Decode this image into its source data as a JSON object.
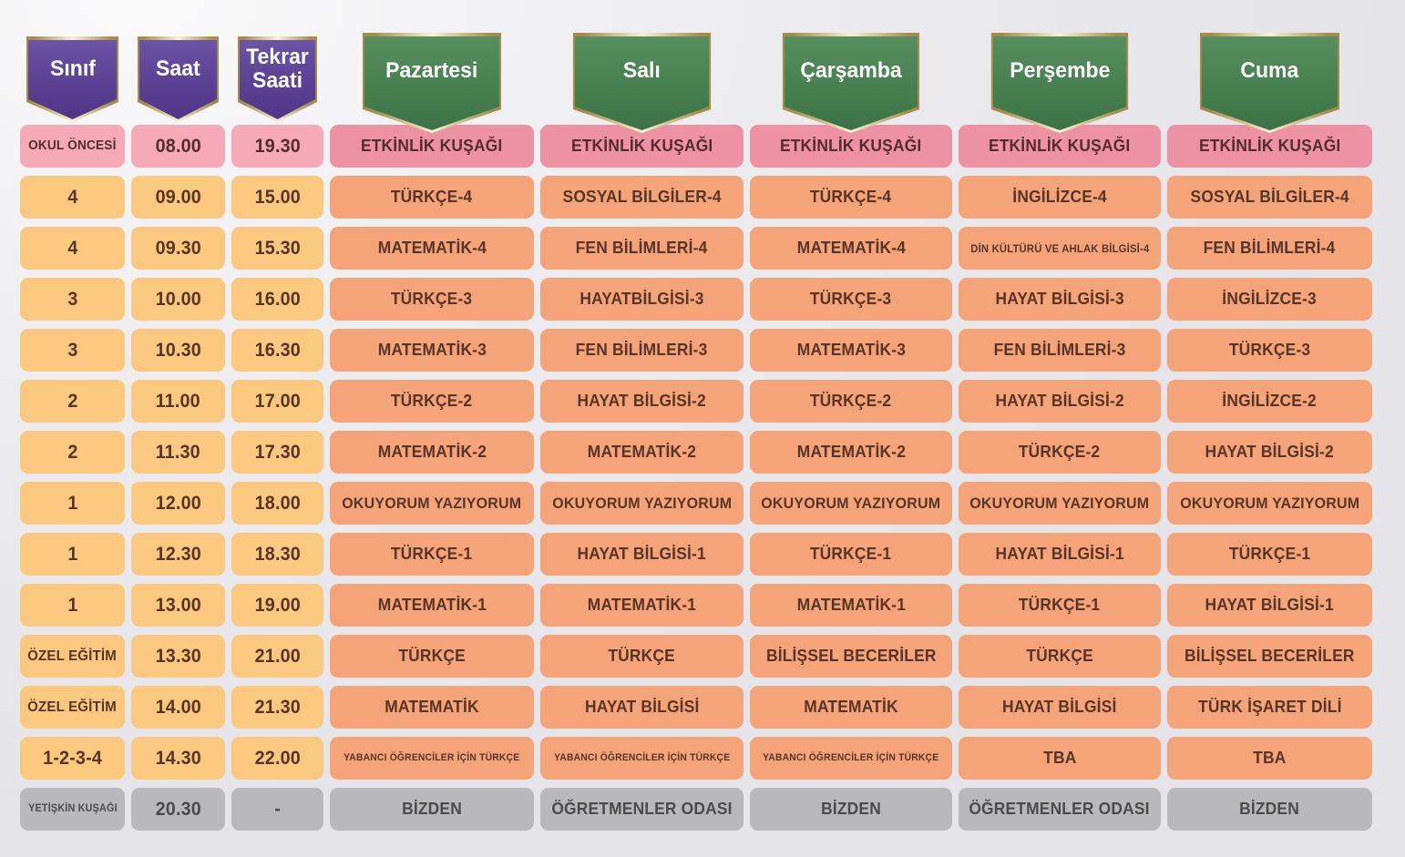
{
  "palette": {
    "background": "#ebebee",
    "ribbon_purple": "#5a4193",
    "ribbon_green": "#47804f",
    "ribbon_gold": "#a58c4b",
    "pink_info": "#f6aab7",
    "pink_day": "#ec92a2",
    "orange_info": "#fac87f",
    "orange_day": "#f4a478",
    "gray_cell": "#b9b9bb",
    "cell_text": "#583526",
    "pink_text": "#552c30",
    "gray_text": "#4b4b4b",
    "ribbon_text": "#ffffff"
  },
  "header": {
    "info_columns": [
      {
        "label": "Sınıf"
      },
      {
        "label": "Saat"
      },
      {
        "label": "Tekrar Saati"
      }
    ],
    "day_columns": [
      {
        "label": "Pazartesi"
      },
      {
        "label": "Salı"
      },
      {
        "label": "Çarşamba"
      },
      {
        "label": "Perşembe"
      },
      {
        "label": "Cuma"
      }
    ]
  },
  "rows": [
    {
      "class": "OKUL ÖNCESİ",
      "time": "08.00",
      "repeat": "19.30",
      "style": "pink",
      "days": [
        "ETKİNLİK KUŞAĞI",
        "ETKİNLİK KUŞAĞI",
        "ETKİNLİK KUŞAĞI",
        "ETKİNLİK KUŞAĞI",
        "ETKİNLİK KUŞAĞI"
      ]
    },
    {
      "class": "4",
      "time": "09.00",
      "repeat": "15.00",
      "style": "orange",
      "days": [
        "TÜRKÇE-4",
        "SOSYAL BİLGİLER-4",
        "TÜRKÇE-4",
        "İNGİLİZCE-4",
        "SOSYAL BİLGİLER-4"
      ]
    },
    {
      "class": "4",
      "time": "09.30",
      "repeat": "15.30",
      "style": "orange",
      "days": [
        "MATEMATİK-4",
        "FEN BİLİMLERİ-4",
        "MATEMATİK-4",
        "DİN KÜLTÜRÜ VE AHLAK BİLGİSİ-4",
        "FEN BİLİMLERİ-4"
      ]
    },
    {
      "class": "3",
      "time": "10.00",
      "repeat": "16.00",
      "style": "orange",
      "days": [
        "TÜRKÇE-3",
        "HAYATBİLGİSİ-3",
        "TÜRKÇE-3",
        "HAYAT BİLGİSİ-3",
        "İNGİLİZCE-3"
      ]
    },
    {
      "class": "3",
      "time": "10.30",
      "repeat": "16.30",
      "style": "orange",
      "days": [
        "MATEMATİK-3",
        "FEN BİLİMLERİ-3",
        "MATEMATİK-3",
        "FEN BİLİMLERİ-3",
        "TÜRKÇE-3"
      ]
    },
    {
      "class": "2",
      "time": "11.00",
      "repeat": "17.00",
      "style": "orange",
      "days": [
        "TÜRKÇE-2",
        "HAYAT BİLGİSİ-2",
        "TÜRKÇE-2",
        "HAYAT BİLGİSİ-2",
        "İNGİLİZCE-2"
      ]
    },
    {
      "class": "2",
      "time": "11.30",
      "repeat": "17.30",
      "style": "orange",
      "days": [
        "MATEMATİK-2",
        "MATEMATİK-2",
        "MATEMATİK-2",
        "TÜRKÇE-2",
        "HAYAT BİLGİSİ-2"
      ]
    },
    {
      "class": "1",
      "time": "12.00",
      "repeat": "18.00",
      "style": "orange",
      "days": [
        "OKUYORUM YAZIYORUM",
        "OKUYORUM YAZIYORUM",
        "OKUYORUM YAZIYORUM",
        "OKUYORUM YAZIYORUM",
        "OKUYORUM YAZIYORUM"
      ]
    },
    {
      "class": "1",
      "time": "12.30",
      "repeat": "18.30",
      "style": "orange",
      "days": [
        "TÜRKÇE-1",
        "HAYAT BİLGİSİ-1",
        "TÜRKÇE-1",
        "HAYAT BİLGİSİ-1",
        "TÜRKÇE-1"
      ]
    },
    {
      "class": "1",
      "time": "13.00",
      "repeat": "19.00",
      "style": "orange",
      "days": [
        "MATEMATİK-1",
        "MATEMATİK-1",
        "MATEMATİK-1",
        "TÜRKÇE-1",
        "HAYAT BİLGİSİ-1"
      ]
    },
    {
      "class": "ÖZEL EĞİTİM",
      "time": "13.30",
      "repeat": "21.00",
      "style": "orange",
      "days": [
        "TÜRKÇE",
        "TÜRKÇE",
        "BİLİŞSEL BECERİLER",
        "TÜRKÇE",
        "BİLİŞSEL BECERİLER"
      ]
    },
    {
      "class": "ÖZEL EĞİTİM",
      "time": "14.00",
      "repeat": "21.30",
      "style": "orange",
      "days": [
        "MATEMATİK",
        "HAYAT BİLGİSİ",
        "MATEMATİK",
        "HAYAT BİLGİSİ",
        "TÜRK İŞARET DİLİ"
      ]
    },
    {
      "class": "1-2-3-4",
      "time": "14.30",
      "repeat": "22.00",
      "style": "orange",
      "days": [
        "YABANCI ÖĞRENCİLER İÇİN TÜRKÇE",
        "YABANCI ÖĞRENCİLER İÇİN TÜRKÇE",
        "YABANCI ÖĞRENCİLER İÇİN TÜRKÇE",
        "TBA",
        "TBA"
      ]
    },
    {
      "class": "YETİŞKİN KUŞAĞI",
      "time": "20.30",
      "repeat": "-",
      "style": "gray",
      "days": [
        "BİZDEN",
        "ÖĞRETMENLER ODASI",
        "BİZDEN",
        "ÖĞRETMENLER ODASI",
        "BİZDEN"
      ]
    }
  ]
}
